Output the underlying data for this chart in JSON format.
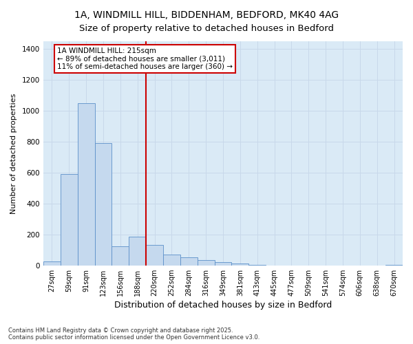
{
  "title_line1": "1A, WINDMILL HILL, BIDDENHAM, BEDFORD, MK40 4AG",
  "title_line2": "Size of property relative to detached houses in Bedford",
  "xlabel": "Distribution of detached houses by size in Bedford",
  "ylabel": "Number of detached properties",
  "bar_labels": [
    "27sqm",
    "59sqm",
    "91sqm",
    "123sqm",
    "156sqm",
    "188sqm",
    "220sqm",
    "252sqm",
    "284sqm",
    "316sqm",
    "349sqm",
    "381sqm",
    "413sqm",
    "445sqm",
    "477sqm",
    "509sqm",
    "541sqm",
    "574sqm",
    "606sqm",
    "638sqm",
    "670sqm"
  ],
  "bar_values": [
    25,
    590,
    1050,
    790,
    125,
    185,
    130,
    70,
    50,
    35,
    20,
    10,
    5,
    0,
    0,
    0,
    0,
    0,
    0,
    0,
    5
  ],
  "bar_color": "#c5d9ee",
  "bar_edge_color": "#5b8fc9",
  "vline_color": "#cc0000",
  "annotation_text": "1A WINDMILL HILL: 215sqm\n← 89% of detached houses are smaller (3,011)\n11% of semi-detached houses are larger (360) →",
  "annotation_box_color": "#ffffff",
  "annotation_box_edge": "#cc0000",
  "ylim": [
    0,
    1450
  ],
  "yticks": [
    0,
    200,
    400,
    600,
    800,
    1000,
    1200,
    1400
  ],
  "grid_color": "#c8d8ea",
  "bg_color": "#daeaf6",
  "footnote": "Contains HM Land Registry data © Crown copyright and database right 2025.\nContains public sector information licensed under the Open Government Licence v3.0.",
  "title_fontsize": 10,
  "xlabel_fontsize": 9,
  "ylabel_fontsize": 8,
  "tick_fontsize": 7,
  "annotation_fontsize": 7.5,
  "footnote_fontsize": 6
}
